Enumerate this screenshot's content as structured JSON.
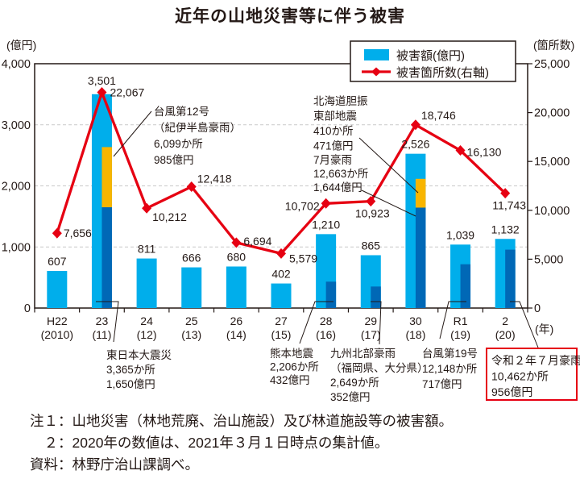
{
  "title": "近年の山地災害等に伴う被害",
  "legend": {
    "bar_label": "被害額(億円)",
    "line_label": "被害箇所数(右軸)"
  },
  "colors": {
    "bar": "#00AEEB",
    "sub": "#0068B6",
    "highlight": "#F8B500",
    "line": "#E60012",
    "text": "#231815",
    "grid": "#C9C9C9",
    "frame": "#231815",
    "annotation_box": "#E60012"
  },
  "x_categories": [
    {
      "era": "H22",
      "west": "(2010)"
    },
    {
      "era": "23",
      "west": "(11)"
    },
    {
      "era": "24",
      "west": "(12)"
    },
    {
      "era": "25",
      "west": "(13)"
    },
    {
      "era": "26",
      "west": "(14)"
    },
    {
      "era": "27",
      "west": "(15)"
    },
    {
      "era": "28",
      "west": "(16)"
    },
    {
      "era": "29",
      "west": "(17)"
    },
    {
      "era": "30",
      "west": "(18)"
    },
    {
      "era": "R1",
      "west": "(19)"
    },
    {
      "era": "2",
      "west": "(20)"
    }
  ],
  "chart_data": {
    "type": "bar+line",
    "categories": [
      "H22 (2010)",
      "23 (11)",
      "24 (12)",
      "25 (13)",
      "26 (14)",
      "27 (15)",
      "28 (16)",
      "29 (17)",
      "30 (18)",
      "R1 (19)",
      "2 (20)"
    ],
    "series": [
      {
        "name": "被害額(億円)",
        "type": "bar",
        "axis": "left",
        "values": [
          607,
          3501,
          811,
          666,
          680,
          402,
          1210,
          865,
          2526,
          1039,
          1132
        ]
      },
      {
        "name": "被害箇所数(右軸)",
        "type": "line",
        "axis": "right",
        "values": [
          7656,
          22067,
          10212,
          12418,
          6694,
          5579,
          10702,
          10923,
          18746,
          16130,
          11743
        ]
      }
    ],
    "highlight_segments": [
      {
        "category_index": 1,
        "segments": [
          {
            "value": 1650,
            "color_key": "sub"
          },
          {
            "value": 985,
            "color_key": "highlight"
          }
        ]
      },
      {
        "category_index": 6,
        "segments": [
          {
            "value": 432,
            "color_key": "sub"
          }
        ]
      },
      {
        "category_index": 7,
        "segments": [
          {
            "value": 352,
            "color_key": "sub"
          }
        ]
      },
      {
        "category_index": 8,
        "segments": [
          {
            "value": 1644,
            "color_key": "sub"
          },
          {
            "value": 471,
            "color_key": "highlight"
          }
        ]
      },
      {
        "category_index": 9,
        "segments": [
          {
            "value": 717,
            "color_key": "sub"
          }
        ]
      },
      {
        "category_index": 10,
        "segments": [
          {
            "value": 956,
            "color_key": "sub"
          }
        ]
      }
    ],
    "left_axis": {
      "label": "(億円)",
      "min": 0,
      "max": 4000,
      "ticks": [
        0,
        1000,
        2000,
        3000,
        4000
      ]
    },
    "right_axis": {
      "label": "(箇所数)",
      "min": 0,
      "max": 25000,
      "ticks": [
        0,
        5000,
        10000,
        15000,
        20000,
        25000
      ]
    },
    "x_axis_label": "(年)",
    "gridlines": [
      1000,
      2000,
      3000
    ],
    "legend_position": "top-right-inside"
  },
  "annotations": [
    {
      "id": "typhoon12",
      "lines": [
        "台風第12号",
        "（紀伊半島豪雨）",
        "6,099か所",
        "985億円"
      ],
      "boxed": false
    },
    {
      "id": "hokkaido",
      "lines": [
        "北海道胆振",
        "東部地震",
        "410か所",
        "471億円"
      ],
      "boxed": false
    },
    {
      "id": "july-rain",
      "lines": [
        "7月豪雨",
        "12,663か所",
        "1,644億円"
      ],
      "boxed": false
    },
    {
      "id": "higashinihon",
      "lines": [
        "東日本大震災",
        "3,365か所",
        "1,650億円"
      ],
      "boxed": false
    },
    {
      "id": "kumamoto",
      "lines": [
        "熊本地震",
        "2,206か所",
        "432億円"
      ],
      "boxed": false
    },
    {
      "id": "kyushu",
      "lines": [
        "九州北部豪雨",
        "（福岡県、大分県）",
        "2,649か所",
        "352億円"
      ],
      "boxed": false
    },
    {
      "id": "typhoon19",
      "lines": [
        "台風第19号",
        "12,148か所",
        "717億円"
      ],
      "boxed": false
    },
    {
      "id": "reiwa2july",
      "lines": [
        "令和２年７月豪雨",
        "10,462か所",
        "956億円"
      ],
      "boxed": true
    }
  ],
  "notes": [
    "注１：山地災害（林地荒廃、治山施設）及び林道施設等の被害額。",
    "　２：2020年の数値は、2021年３月１日時点の集計値。",
    "資料：林野庁治山課調べ。"
  ]
}
